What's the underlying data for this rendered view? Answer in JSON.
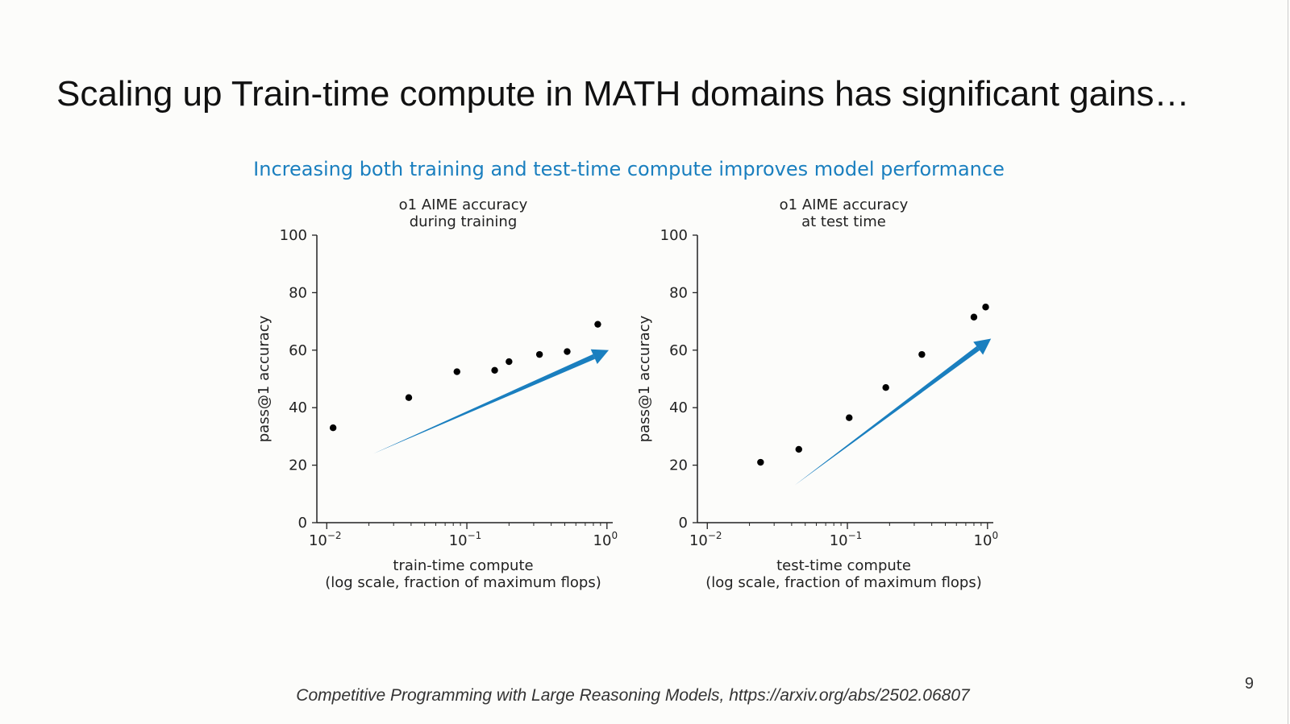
{
  "slide": {
    "title": "Scaling up Train-time compute in MATH domains has significant gains…",
    "figure_heading": "Increasing both training and test-time compute improves model performance",
    "caption": "Competitive Programming with Large Reasoning Models, https://arxiv.org/abs/2502.06807",
    "page_number": "9"
  },
  "colors": {
    "arrow": "#1a7fbf",
    "points": "#000000",
    "heading": "#1a7fbf"
  },
  "chart_data": [
    {
      "type": "scatter",
      "title": [
        "o1 AIME accuracy",
        "during training"
      ],
      "xlabel": [
        "train-time compute",
        "(log scale, fraction of maximum flops)"
      ],
      "ylabel": "pass@1 accuracy",
      "xscale": "log",
      "xlim": [
        0.0085,
        1.1
      ],
      "ylim": [
        0,
        100
      ],
      "xticks": [
        {
          "value": 0.01,
          "exp": "−2"
        },
        {
          "value": 0.1,
          "exp": "−1"
        },
        {
          "value": 1,
          "exp": "0"
        }
      ],
      "yticks": [
        0,
        20,
        40,
        60,
        80,
        100
      ],
      "points": [
        {
          "x": 0.0111,
          "y": 33
        },
        {
          "x": 0.0385,
          "y": 43.5
        },
        {
          "x": 0.085,
          "y": 52.5
        },
        {
          "x": 0.158,
          "y": 53
        },
        {
          "x": 0.2,
          "y": 56
        },
        {
          "x": 0.33,
          "y": 58.5
        },
        {
          "x": 0.52,
          "y": 59.5
        },
        {
          "x": 0.86,
          "y": 69
        }
      ],
      "trend_arrow": {
        "from": {
          "x": 0.0215,
          "y": 24
        },
        "to": {
          "x": 1.03,
          "y": 60
        }
      }
    },
    {
      "type": "scatter",
      "title": [
        "o1 AIME accuracy",
        "at test time"
      ],
      "xlabel": [
        "test-time compute",
        "(log scale, fraction of maximum flops)"
      ],
      "ylabel": "pass@1 accuracy",
      "xscale": "log",
      "xlim": [
        0.0085,
        1.1
      ],
      "ylim": [
        0,
        100
      ],
      "xticks": [
        {
          "value": 0.01,
          "exp": "−2"
        },
        {
          "value": 0.1,
          "exp": "−1"
        },
        {
          "value": 1,
          "exp": "0"
        }
      ],
      "yticks": [
        0,
        20,
        40,
        60,
        80,
        100
      ],
      "points": [
        {
          "x": 0.024,
          "y": 21
        },
        {
          "x": 0.045,
          "y": 25.5
        },
        {
          "x": 0.103,
          "y": 36.5
        },
        {
          "x": 0.188,
          "y": 47
        },
        {
          "x": 0.34,
          "y": 58.5
        },
        {
          "x": 0.8,
          "y": 71.5
        },
        {
          "x": 0.97,
          "y": 75
        }
      ],
      "trend_arrow": {
        "from": {
          "x": 0.042,
          "y": 13
        },
        "to": {
          "x": 1.06,
          "y": 64
        }
      }
    }
  ]
}
